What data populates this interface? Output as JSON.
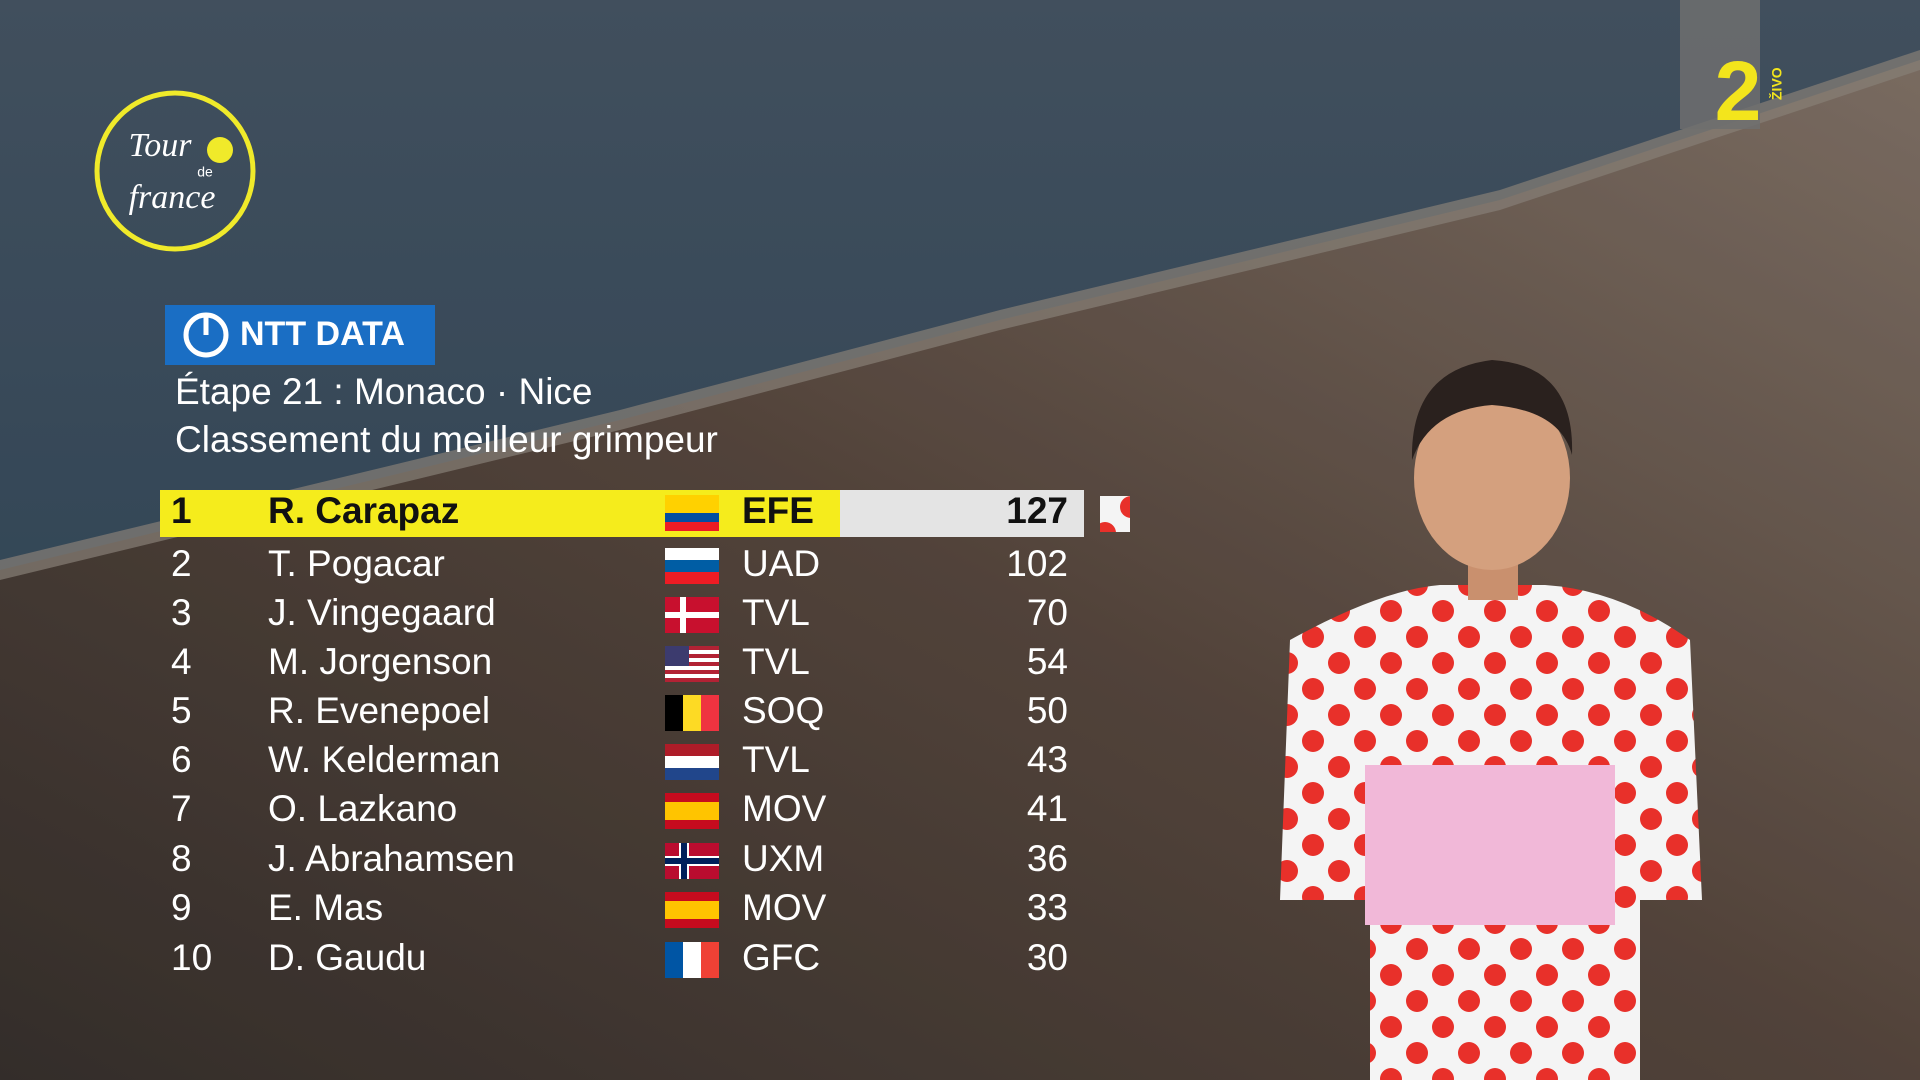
{
  "logo": {
    "lines": [
      "Tour",
      "de",
      "france"
    ]
  },
  "channel": {
    "number": "2",
    "tag": "ŽIVO"
  },
  "sponsor": "NTT DATA",
  "header": {
    "stage": "Étape 21 : Monaco · Nice",
    "classification": "Classement du meilleur grimpeur"
  },
  "table": {
    "rows": [
      {
        "rank": 1,
        "name": "R. Carapaz",
        "team": "EFE",
        "points": 127
      },
      {
        "rank": 2,
        "name": "T. Pogacar",
        "team": "UAD",
        "points": 102
      },
      {
        "rank": 3,
        "name": "J. Vingegaard",
        "team": "TVL",
        "points": 70
      },
      {
        "rank": 4,
        "name": "M. Jorgenson",
        "team": "TVL",
        "points": 54
      },
      {
        "rank": 5,
        "name": "R. Evenepoel",
        "team": "SOQ",
        "points": 50
      },
      {
        "rank": 6,
        "name": "W. Kelderman",
        "team": "TVL",
        "points": 43
      },
      {
        "rank": 7,
        "name": "O. Lazkano",
        "team": "MOV",
        "points": 41
      },
      {
        "rank": 8,
        "name": "J. Abrahamsen",
        "team": "UXM",
        "points": 36
      },
      {
        "rank": 9,
        "name": "E. Mas",
        "team": "MOV",
        "points": 33
      },
      {
        "rank": 10,
        "name": "D. Gaudu",
        "team": "GFC",
        "points": 30
      }
    ]
  }
}
